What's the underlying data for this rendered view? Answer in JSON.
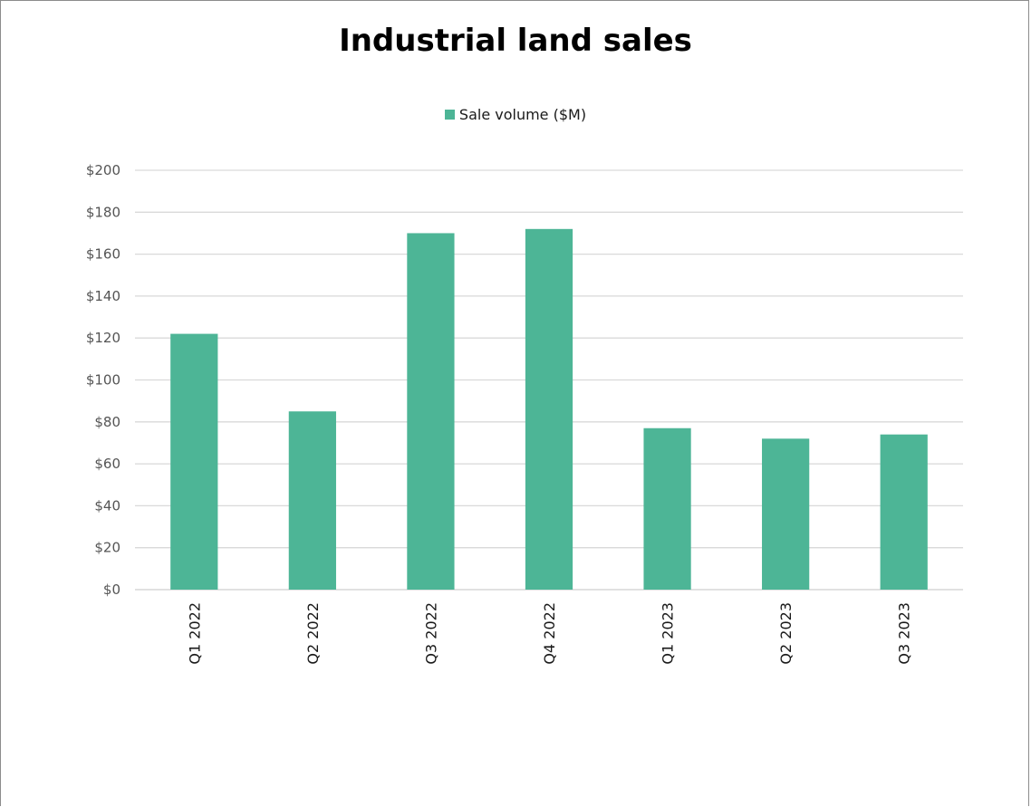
{
  "chart_data": {
    "type": "bar",
    "title": "Industrial land sales",
    "xlabel": "",
    "ylabel": "",
    "categories": [
      "Q1 2022",
      "Q2 2022",
      "Q3 2022",
      "Q4 2022",
      "Q1 2023",
      "Q2 2023",
      "Q3 2023"
    ],
    "series": [
      {
        "name": "Sale volume ($M)",
        "values": [
          122,
          85,
          170,
          172,
          77,
          72,
          74
        ],
        "color": "#4db596"
      }
    ],
    "ylim": [
      0,
      200
    ],
    "yticks": [
      0,
      20,
      40,
      60,
      80,
      100,
      120,
      140,
      160,
      180,
      200
    ],
    "ytick_labels": [
      "$0",
      "$20",
      "$40",
      "$60",
      "$80",
      "$100",
      "$120",
      "$140",
      "$160",
      "$180",
      "$200"
    ],
    "grid": true,
    "legend_position": "top-center"
  }
}
